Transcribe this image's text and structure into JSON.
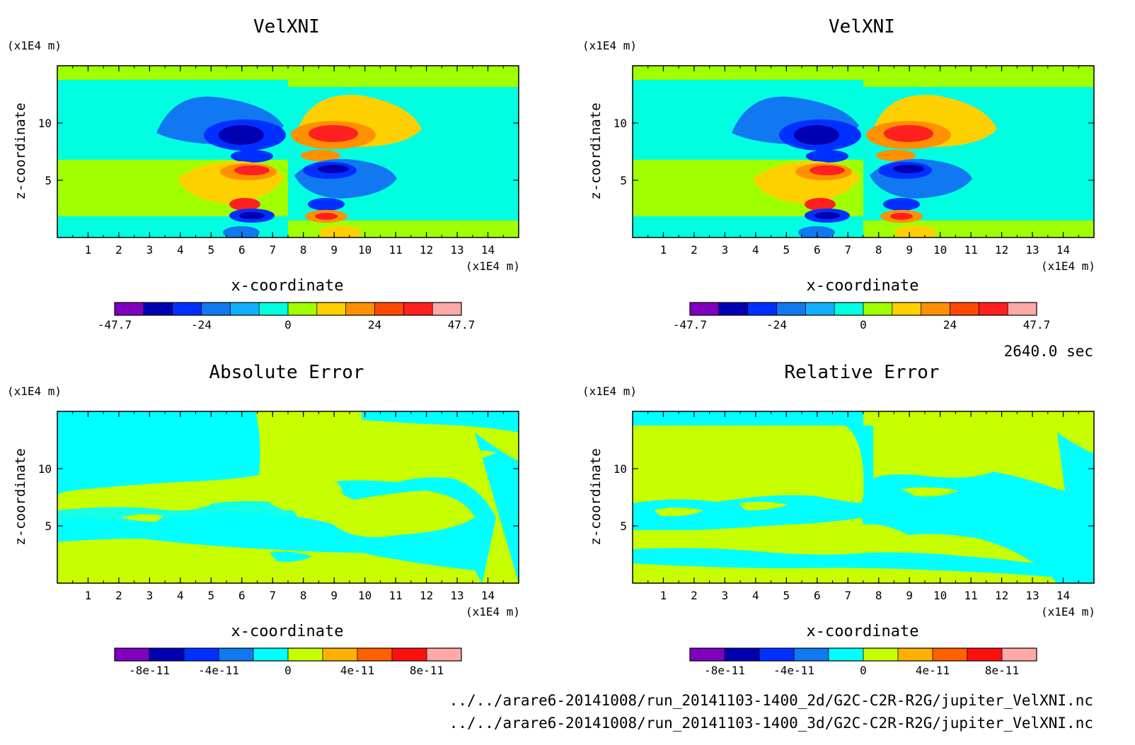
{
  "time_label": "2640.0 sec",
  "files": [
    "../../arare6-20141008/run_20141103-1400_2d/G2C-C2R-R2G/jupiter_VelXNI.nc",
    "../../arare6-20141008/run_20141103-1400_3d/G2C-C2R-R2G/jupiter_VelXNI.nc"
  ],
  "chart_data": [
    {
      "type": "heatmap",
      "title": "VelXNI",
      "xlabel": "x-coordinate",
      "ylabel": "z-coordinate",
      "xunit": "(x1E4 m)",
      "yunit": "(x1E4 m)",
      "xlim": [
        0,
        15
      ],
      "ylim": [
        0,
        15
      ],
      "xticks": [
        1,
        2,
        3,
        4,
        5,
        6,
        7,
        8,
        9,
        10,
        11,
        12,
        13,
        14
      ],
      "yticks": [
        5,
        10
      ],
      "colorbar": {
        "min": -47.7,
        "max": 47.7,
        "labels": [
          "-47.7",
          "-24",
          "0",
          "24",
          "47.7"
        ],
        "colors": [
          "#8000c0",
          "#0000b0",
          "#0030ff",
          "#1078f0",
          "#10b0ff",
          "#00ffe0",
          "#a0ff00",
          "#ffd000",
          "#ff9000",
          "#ff4800",
          "#ff2020",
          "#ffa8a8"
        ]
      }
    },
    {
      "type": "heatmap",
      "title": "VelXNI",
      "xlabel": "x-coordinate",
      "ylabel": "z-coordinate",
      "xunit": "(x1E4 m)",
      "yunit": "(x1E4 m)",
      "xlim": [
        0,
        15
      ],
      "ylim": [
        0,
        15
      ],
      "xticks": [
        1,
        2,
        3,
        4,
        5,
        6,
        7,
        8,
        9,
        10,
        11,
        12,
        13,
        14
      ],
      "yticks": [
        5,
        10
      ],
      "colorbar": {
        "min": -47.7,
        "max": 47.7,
        "labels": [
          "-47.7",
          "-24",
          "0",
          "24",
          "47.7"
        ],
        "colors": [
          "#8000c0",
          "#0000b0",
          "#0030ff",
          "#1078f0",
          "#10b0ff",
          "#00ffe0",
          "#a0ff00",
          "#ffd000",
          "#ff9000",
          "#ff4800",
          "#ff2020",
          "#ffa8a8"
        ]
      }
    },
    {
      "type": "heatmap",
      "title": "Absolute Error",
      "xlabel": "x-coordinate",
      "ylabel": "z-coordinate",
      "xunit": "(x1E4 m)",
      "yunit": "(x1E4 m)",
      "xlim": [
        0,
        15
      ],
      "ylim": [
        0,
        15
      ],
      "xticks": [
        1,
        2,
        3,
        4,
        5,
        6,
        7,
        8,
        9,
        10,
        11,
        12,
        13,
        14
      ],
      "yticks": [
        5,
        10
      ],
      "colorbar": {
        "min": -1e-10,
        "max": 1e-10,
        "labels": [
          "-8e-11",
          "-4e-11",
          "0",
          "4e-11",
          "8e-11"
        ],
        "colors": [
          "#8000c0",
          "#0000b0",
          "#0030ff",
          "#1078f0",
          "#00ffff",
          "#c8ff00",
          "#ffb000",
          "#ff6000",
          "#ff1010",
          "#ffa8a8"
        ]
      }
    },
    {
      "type": "heatmap",
      "title": "Relative Error",
      "xlabel": "x-coordinate",
      "ylabel": "z-coordinate",
      "xunit": "(x1E4 m)",
      "yunit": "(x1E4 m)",
      "xlim": [
        0,
        15
      ],
      "ylim": [
        0,
        15
      ],
      "xticks": [
        1,
        2,
        3,
        4,
        5,
        6,
        7,
        8,
        9,
        10,
        11,
        12,
        13,
        14
      ],
      "yticks": [
        5,
        10
      ],
      "colorbar": {
        "min": -1e-10,
        "max": 1e-10,
        "labels": [
          "-8e-11",
          "-4e-11",
          "0",
          "4e-11",
          "8e-11"
        ],
        "colors": [
          "#8000c0",
          "#0000b0",
          "#0030ff",
          "#1078f0",
          "#00ffff",
          "#c8ff00",
          "#ffb000",
          "#ff6000",
          "#ff1010",
          "#ffa8a8"
        ]
      }
    }
  ]
}
